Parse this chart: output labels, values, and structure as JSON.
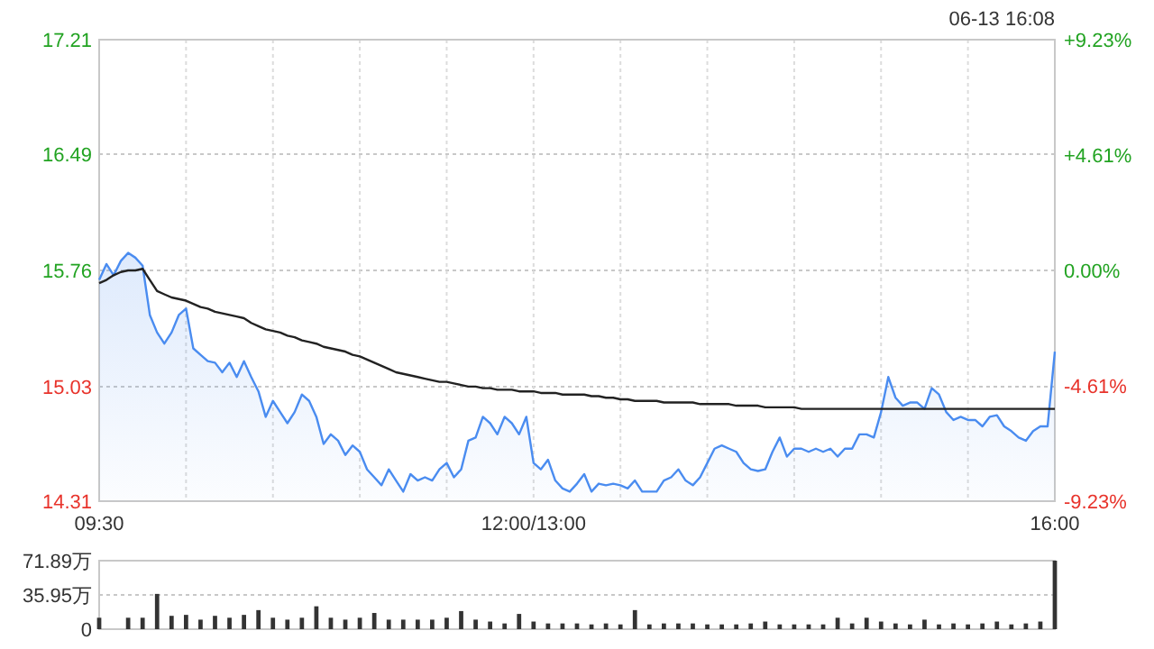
{
  "chart_data": [
    {
      "type": "area",
      "categories": [
        "09:30",
        null,
        null,
        null,
        null,
        null,
        null,
        null,
        null,
        null,
        null,
        null,
        null,
        null,
        null,
        null,
        null,
        null,
        null,
        null,
        null,
        null,
        null,
        null,
        null,
        null,
        null,
        null,
        null,
        null,
        null,
        null,
        null,
        null,
        null,
        null,
        null,
        null,
        null,
        null,
        null,
        null,
        null,
        null,
        null,
        null,
        null,
        null,
        null,
        null,
        null,
        null,
        null,
        null,
        null,
        null,
        null,
        null,
        null,
        null,
        "12:00/13:00",
        null,
        null,
        null,
        null,
        null,
        null,
        null,
        null,
        null,
        null,
        null,
        null,
        null,
        null,
        null,
        null,
        null,
        null,
        null,
        null,
        null,
        null,
        null,
        null,
        null,
        null,
        null,
        null,
        null,
        null,
        null,
        null,
        null,
        null,
        null,
        null,
        null,
        null,
        null,
        null,
        null,
        null,
        null,
        null,
        null,
        null,
        null,
        null,
        null,
        null,
        null,
        null,
        null,
        null,
        null,
        null,
        null,
        null,
        null,
        null,
        null,
        null,
        null,
        null,
        null,
        null,
        null,
        null,
        null,
        null,
        null,
        "16:00"
      ],
      "series": [
        {
          "color": "#4a8cf0",
          "values": [
            15.7,
            15.8,
            15.73,
            15.82,
            15.87,
            15.84,
            15.79,
            15.48,
            15.37,
            15.3,
            15.37,
            15.48,
            15.52,
            15.27,
            15.23,
            15.19,
            15.18,
            15.12,
            15.18,
            15.09,
            15.19,
            15.09,
            15.0,
            14.84,
            14.94,
            14.87,
            14.8,
            14.87,
            14.98,
            14.94,
            14.84,
            14.67,
            14.73,
            14.69,
            14.6,
            14.66,
            14.62,
            14.51,
            14.46,
            14.41,
            14.51,
            14.44,
            14.37,
            14.48,
            14.44,
            14.46,
            14.44,
            14.51,
            14.55,
            14.46,
            14.51,
            14.69,
            14.71,
            14.84,
            14.8,
            14.73,
            14.84,
            14.8,
            14.73,
            14.84,
            14.55,
            14.51,
            14.57,
            14.44,
            14.39,
            14.37,
            14.42,
            14.48,
            14.37,
            14.42,
            14.41,
            14.42,
            14.41,
            14.39,
            14.44,
            14.37,
            14.37,
            14.37,
            14.44,
            14.46,
            14.51,
            14.44,
            14.41,
            14.46,
            14.55,
            14.64,
            14.66,
            14.64,
            14.62,
            14.55,
            14.51,
            14.5,
            14.51,
            14.62,
            14.71,
            14.59,
            14.64,
            14.64,
            14.62,
            14.64,
            14.62,
            14.64,
            14.59,
            14.64,
            14.64,
            14.73,
            14.73,
            14.71,
            14.87,
            15.09,
            14.96,
            14.91,
            14.93,
            14.93,
            14.89,
            15.02,
            14.98,
            14.87,
            14.82,
            14.84,
            14.82,
            14.82,
            14.78,
            14.84,
            14.85,
            14.78,
            14.75,
            14.71,
            14.69,
            14.75,
            14.78,
            14.78,
            15.25
          ]
        },
        {
          "type": "line",
          "color": "#222222",
          "values": [
            15.68,
            15.7,
            15.73,
            15.75,
            15.76,
            15.76,
            15.77,
            15.7,
            15.63,
            15.61,
            15.59,
            15.58,
            15.57,
            15.55,
            15.53,
            15.52,
            15.5,
            15.49,
            15.48,
            15.47,
            15.46,
            15.43,
            15.41,
            15.39,
            15.38,
            15.37,
            15.35,
            15.34,
            15.32,
            15.31,
            15.3,
            15.28,
            15.27,
            15.26,
            15.25,
            15.23,
            15.22,
            15.2,
            15.18,
            15.16,
            15.14,
            15.12,
            15.11,
            15.1,
            15.09,
            15.08,
            15.07,
            15.06,
            15.06,
            15.05,
            15.04,
            15.03,
            15.03,
            15.02,
            15.02,
            15.01,
            15.01,
            15.01,
            15.0,
            15.0,
            15.0,
            14.99,
            14.99,
            14.99,
            14.98,
            14.98,
            14.98,
            14.98,
            14.97,
            14.97,
            14.96,
            14.96,
            14.95,
            14.95,
            14.94,
            14.94,
            14.94,
            14.94,
            14.93,
            14.93,
            14.93,
            14.93,
            14.93,
            14.92,
            14.92,
            14.92,
            14.92,
            14.92,
            14.91,
            14.91,
            14.91,
            14.91,
            14.9,
            14.9,
            14.9,
            14.9,
            14.9,
            14.89,
            14.89,
            14.89,
            14.89,
            14.89,
            14.89,
            14.89,
            14.89,
            14.89,
            14.89,
            14.89,
            14.89,
            14.89,
            14.89,
            14.89,
            14.89,
            14.89,
            14.89,
            14.89,
            14.89,
            14.89,
            14.89,
            14.89,
            14.89,
            14.89,
            14.89,
            14.89,
            14.89,
            14.89,
            14.89,
            14.89,
            14.89,
            14.89,
            14.89,
            14.89,
            14.89
          ]
        }
      ],
      "ylim": [
        14.31,
        17.21
      ],
      "yticks": [
        14.31,
        15.03,
        15.76,
        16.49,
        17.21
      ],
      "y2lim": [
        -9.23,
        9.23
      ],
      "y2ticks": [
        {
          "value": -9.23,
          "label": "-9.23%"
        },
        {
          "value": -4.61,
          "label": "-4.61%"
        },
        {
          "value": 0,
          "label": "0.00%"
        },
        {
          "value": 4.61,
          "label": "+4.61%"
        },
        {
          "value": 9.23,
          "label": "+9.23%"
        }
      ],
      "grid": true,
      "annotations": [
        "06-13 16:08"
      ]
    },
    {
      "type": "bar",
      "categories": [
        null,
        null,
        null,
        null,
        null,
        null,
        null,
        null,
        null,
        null,
        null,
        null,
        null,
        null,
        null,
        null,
        null,
        null,
        null,
        null,
        null,
        null,
        null,
        null,
        null,
        null,
        null,
        null,
        null,
        null,
        null,
        null,
        null,
        null,
        null,
        null,
        null,
        null,
        null,
        null,
        null,
        null,
        null,
        null,
        null,
        null,
        null,
        null,
        null,
        null,
        null,
        null,
        null,
        null,
        null,
        null,
        null,
        null,
        null,
        null,
        null,
        null,
        null,
        null,
        null,
        null,
        null
      ],
      "color": "#333333",
      "values": [
        12,
        0,
        12,
        12,
        37,
        14,
        15,
        10,
        14,
        12,
        15,
        20,
        12,
        10,
        12,
        24,
        12,
        10,
        12,
        17,
        10,
        10,
        10,
        10,
        12,
        19,
        10,
        8,
        6,
        16,
        8,
        6,
        6,
        6,
        5,
        6,
        5,
        20,
        5,
        6,
        6,
        6,
        5,
        5,
        5,
        6,
        8,
        5,
        5,
        5,
        5,
        12,
        6,
        12,
        8,
        6,
        5,
        10,
        5,
        6,
        5,
        6,
        8,
        5,
        6,
        8,
        71.89
      ],
      "ylim": [
        0,
        71.89
      ],
      "yticks": [
        0,
        {
          "value": 35.95,
          "label": "35.95万"
        },
        {
          "value": 71.89,
          "label": "71.89万"
        }
      ],
      "grid": "y",
      "tick_labels": "y"
    }
  ]
}
